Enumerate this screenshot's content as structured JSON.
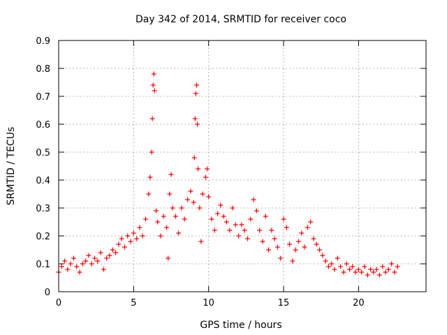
{
  "chart_data": {
    "type": "scatter",
    "title": "Day 342 of 2014, SRMTID for receiver coco",
    "xlabel": "GPS time / hours",
    "ylabel": "SRMTID / TECUs",
    "xlim": [
      0,
      24.5
    ],
    "ylim": [
      0,
      0.9
    ],
    "xticks": [
      0,
      5,
      10,
      15,
      20
    ],
    "xtick_labels": [
      "0",
      "5",
      "10",
      "15",
      "20"
    ],
    "yticks": [
      0,
      0.1,
      0.2,
      0.3,
      0.4,
      0.5,
      0.6,
      0.7,
      0.8,
      0.9
    ],
    "ytick_labels": [
      "0",
      "0.1",
      "0.2",
      "0.3",
      "0.4",
      "0.5",
      "0.6",
      "0.7",
      "0.8",
      "0.9"
    ],
    "grid": true,
    "marker": "plus",
    "series": [
      {
        "name": "SRMTID",
        "color": "#ff0000",
        "x": [
          0.0,
          0.2,
          0.4,
          0.6,
          0.8,
          1.0,
          1.2,
          1.4,
          1.6,
          1.8,
          2.0,
          2.2,
          2.4,
          2.6,
          2.8,
          3.0,
          3.2,
          3.4,
          3.6,
          3.8,
          4.0,
          4.2,
          4.4,
          4.6,
          4.8,
          5.0,
          5.2,
          5.4,
          5.6,
          5.8,
          6.0,
          6.1,
          6.2,
          6.25,
          6.3,
          6.35,
          6.4,
          6.5,
          6.6,
          6.8,
          7.0,
          7.2,
          7.3,
          7.4,
          7.5,
          7.6,
          7.8,
          8.0,
          8.2,
          8.4,
          8.6,
          8.8,
          9.0,
          9.05,
          9.1,
          9.15,
          9.2,
          9.25,
          9.3,
          9.4,
          9.5,
          9.6,
          9.8,
          9.9,
          10.0,
          10.2,
          10.4,
          10.6,
          10.8,
          11.0,
          11.2,
          11.4,
          11.6,
          11.8,
          12.0,
          12.2,
          12.4,
          12.6,
          12.8,
          13.0,
          13.2,
          13.4,
          13.6,
          13.8,
          14.0,
          14.2,
          14.4,
          14.6,
          14.8,
          15.0,
          15.2,
          15.4,
          15.6,
          15.8,
          16.0,
          16.2,
          16.4,
          16.6,
          16.8,
          17.0,
          17.2,
          17.4,
          17.6,
          17.8,
          18.0,
          18.2,
          18.4,
          18.6,
          18.8,
          19.0,
          19.2,
          19.4,
          19.6,
          19.8,
          20.0,
          20.2,
          20.4,
          20.6,
          20.8,
          21.0,
          21.2,
          21.4,
          21.6,
          21.8,
          22.0,
          22.2,
          22.4,
          22.6
        ],
        "y": [
          0.07,
          0.09,
          0.11,
          0.08,
          0.1,
          0.12,
          0.09,
          0.07,
          0.1,
          0.11,
          0.13,
          0.1,
          0.12,
          0.11,
          0.14,
          0.08,
          0.12,
          0.13,
          0.15,
          0.14,
          0.17,
          0.19,
          0.16,
          0.2,
          0.18,
          0.21,
          0.19,
          0.23,
          0.2,
          0.26,
          0.35,
          0.41,
          0.5,
          0.62,
          0.74,
          0.78,
          0.72,
          0.29,
          0.25,
          0.2,
          0.27,
          0.23,
          0.12,
          0.35,
          0.42,
          0.3,
          0.27,
          0.21,
          0.3,
          0.26,
          0.33,
          0.36,
          0.32,
          0.48,
          0.62,
          0.71,
          0.74,
          0.6,
          0.44,
          0.3,
          0.18,
          0.35,
          0.41,
          0.44,
          0.34,
          0.26,
          0.22,
          0.28,
          0.31,
          0.27,
          0.25,
          0.22,
          0.3,
          0.24,
          0.2,
          0.24,
          0.22,
          0.19,
          0.26,
          0.33,
          0.29,
          0.22,
          0.18,
          0.27,
          0.15,
          0.22,
          0.19,
          0.16,
          0.12,
          0.26,
          0.23,
          0.17,
          0.11,
          0.15,
          0.18,
          0.21,
          0.16,
          0.23,
          0.25,
          0.19,
          0.17,
          0.15,
          0.13,
          0.11,
          0.09,
          0.1,
          0.08,
          0.12,
          0.09,
          0.07,
          0.1,
          0.08,
          0.09,
          0.07,
          0.08,
          0.07,
          0.09,
          0.06,
          0.08,
          0.07,
          0.08,
          0.06,
          0.09,
          0.07,
          0.08,
          0.1,
          0.07,
          0.09
        ]
      }
    ]
  }
}
